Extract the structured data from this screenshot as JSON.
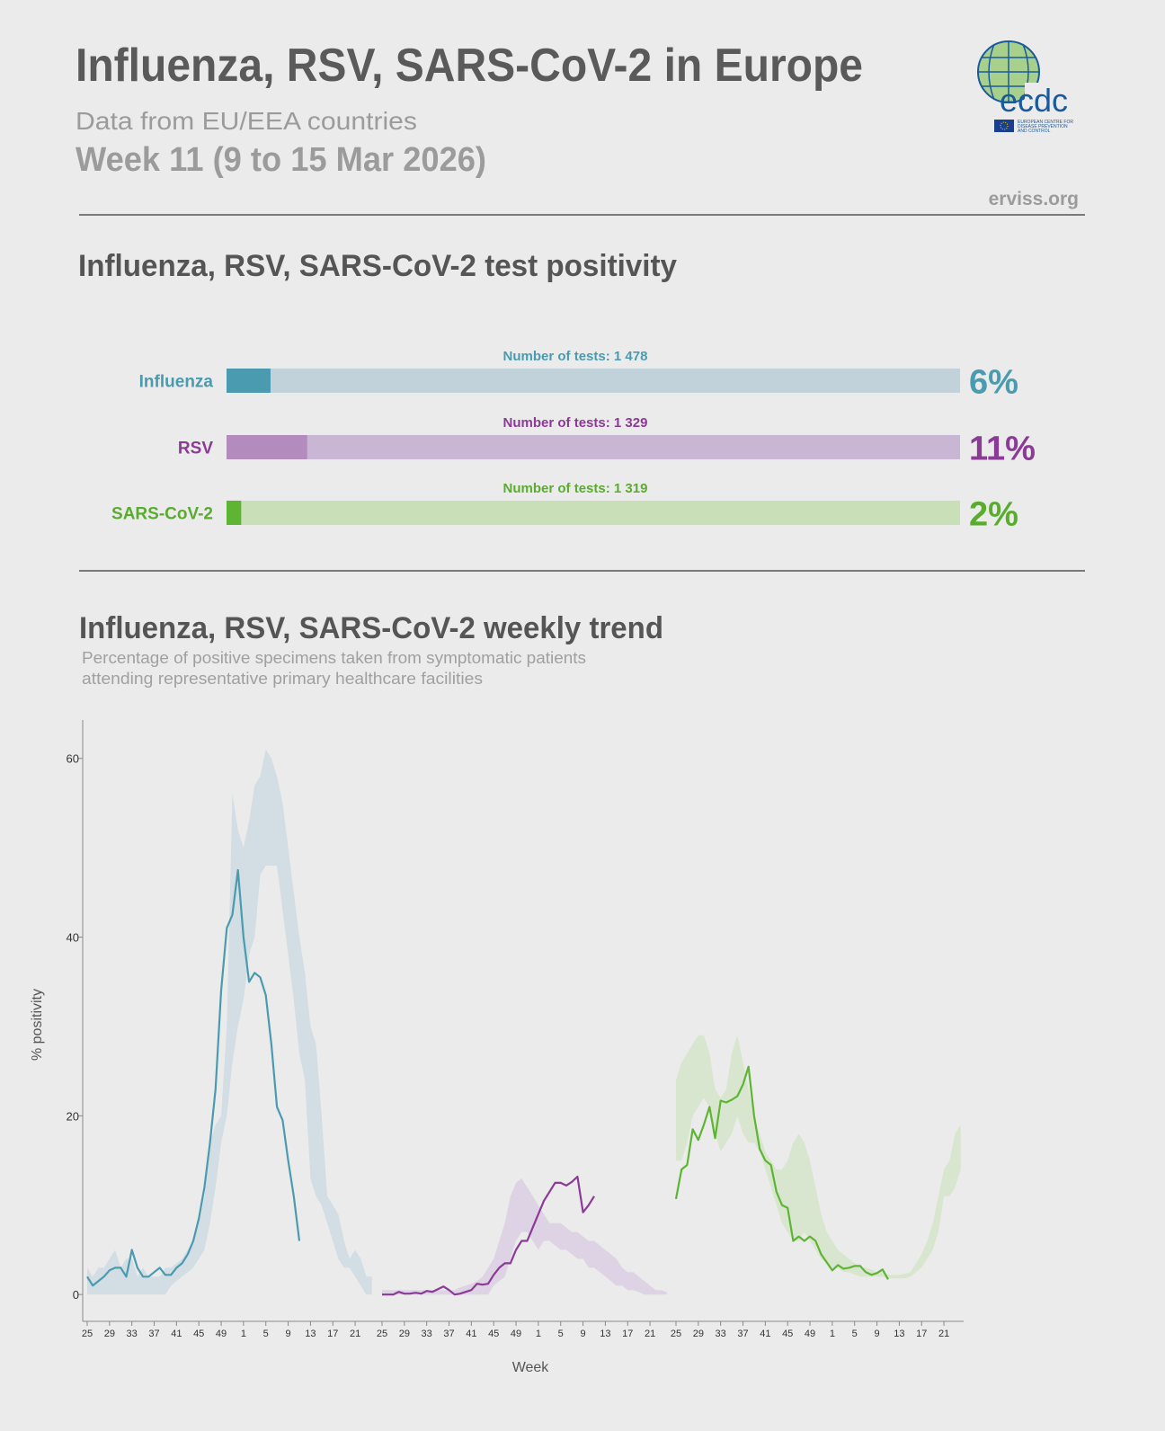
{
  "header": {
    "title": "Influenza, RSV, SARS-CoV-2 in Europe",
    "subtitle": "Data from EU/EEA countries",
    "period": "Week 11 (9 to 15 Mar 2026)",
    "source": "erviss.org",
    "logo_text": "ecdc",
    "logo_subtext": [
      "EUROPEAN CENTRE FOR",
      "DISEASE PREVENTION",
      "AND CONTROL"
    ]
  },
  "chart_data": [
    {
      "type": "bar",
      "title": "Influenza, RSV, SARS-CoV-2 test positivity",
      "categories": [
        "Influenza",
        "RSV",
        "SARS-CoV-2"
      ],
      "values": [
        6,
        11,
        2
      ],
      "value_labels": [
        "6%",
        "11%",
        "2%"
      ],
      "tests_labels": [
        "Number of tests: 1 478",
        "Number of tests: 1 329",
        "Number of tests: 1 319"
      ],
      "colors": [
        "#4a9bb0",
        "#b38cbd",
        "#5db533"
      ],
      "track_colors": [
        "#c2d2db",
        "#c9b5d4",
        "#c9dfb8"
      ],
      "text_colors": [
        "#4a9bb0",
        "#8b3a96",
        "#5aac2e"
      ],
      "xlim": [
        0,
        100
      ]
    },
    {
      "type": "line",
      "title": "Influenza, RSV, SARS-CoV-2 weekly trend",
      "subtitle": [
        "Percentage of positive specimens taken from symptomatic patients",
        "attending representative primary healthcare facilities"
      ],
      "ylabel": "% positivity",
      "xlabel": "Week",
      "ylim": [
        -3,
        64.3
      ],
      "yticks": [
        0,
        20,
        40,
        60
      ],
      "categories": [
        25,
        null,
        null,
        null,
        29,
        null,
        null,
        null,
        33,
        null,
        null,
        null,
        37,
        null,
        null,
        null,
        41,
        null,
        null,
        null,
        45,
        null,
        null,
        null,
        49,
        null,
        null,
        null,
        1,
        null,
        null,
        null,
        5,
        null,
        null,
        null,
        9,
        null,
        null,
        null,
        13,
        null,
        null,
        null,
        17,
        null,
        null,
        null,
        21,
        null,
        null,
        null
      ],
      "series": [
        {
          "color": "#4a9bb0",
          "band_color": "#cfdbe3",
          "values": [
            2,
            1,
            1.5,
            2,
            2.7,
            3,
            3,
            2,
            5,
            3,
            2,
            2,
            2.5,
            3,
            2.2,
            2.2,
            3,
            3.5,
            4.5,
            6,
            8.5,
            12,
            17,
            23,
            34,
            41,
            42.5,
            47.5,
            40,
            35,
            36,
            35.5,
            33.5,
            28,
            21,
            19.5,
            15,
            11,
            6,
            null,
            null,
            null,
            null,
            null,
            null,
            null,
            null,
            null,
            null,
            null,
            null,
            null
          ],
          "band_lower": [
            0,
            0,
            0,
            0,
            0,
            0,
            0,
            0,
            0,
            0,
            0,
            0,
            0,
            0,
            0,
            1,
            1.5,
            2,
            2.5,
            3,
            4,
            5,
            8,
            12,
            17,
            20,
            26,
            30,
            33,
            38,
            40,
            47,
            48,
            48,
            48,
            43,
            38,
            33,
            27,
            24,
            13,
            11,
            10,
            8,
            6,
            4,
            3,
            3,
            2,
            1,
            0,
            0
          ],
          "band_upper": [
            3,
            2,
            3,
            3,
            4,
            5,
            3,
            4,
            4,
            2,
            3,
            2,
            2,
            2,
            3,
            3,
            3.5,
            4,
            5,
            6,
            8,
            11,
            17,
            19,
            20,
            30,
            56,
            52,
            50,
            53,
            57,
            58,
            61,
            60,
            58,
            55,
            50,
            45,
            40,
            36,
            30,
            28,
            20,
            11,
            10,
            9,
            6,
            4,
            5,
            4,
            2,
            2
          ]
        },
        {
          "color": "#8b3a96",
          "band_color": "#ddd0e3",
          "values": [
            0,
            0,
            0,
            0.3,
            0.1,
            0.1,
            0.2,
            0.1,
            0.4,
            0.3,
            0.6,
            0.9,
            0.5,
            0,
            0.1,
            0.3,
            0.5,
            1.2,
            1.1,
            1.2,
            2.2,
            3,
            3.5,
            3.5,
            5,
            6,
            6,
            7.5,
            9,
            10.5,
            11.5,
            12.5,
            12.5,
            12.2,
            12.6,
            13.2,
            9.2,
            10,
            11,
            null,
            null,
            null,
            null,
            null,
            null,
            null,
            null,
            null,
            null,
            null,
            null,
            null
          ],
          "band_lower": [
            0,
            0,
            0,
            0,
            0,
            0,
            0,
            0,
            0,
            0,
            0,
            0,
            0,
            0,
            0,
            0,
            0,
            0,
            0,
            0,
            1,
            1.5,
            2,
            4,
            6,
            7,
            7,
            6,
            5,
            6,
            6,
            5.5,
            5,
            5,
            4.5,
            4,
            4,
            3,
            3,
            2.5,
            2,
            1.5,
            1,
            1,
            0.5,
            0.5,
            0.3,
            0,
            0,
            0,
            0,
            0
          ],
          "band_upper": [
            0.5,
            0.5,
            0.5,
            0.5,
            0.5,
            0.5,
            0.5,
            0.5,
            0.5,
            0.5,
            0.5,
            0.5,
            0.5,
            0.5,
            0.8,
            1,
            1.2,
            1.5,
            2,
            3,
            4,
            6,
            8,
            11,
            12.5,
            13,
            12,
            11,
            10,
            9,
            8,
            8,
            8,
            7.5,
            7,
            7,
            6.5,
            6,
            6,
            5.5,
            5,
            4.5,
            4,
            3,
            2.5,
            2.5,
            2,
            1.5,
            1,
            0.5,
            0.5,
            0.3
          ]
        },
        {
          "color": "#5db533",
          "band_color": "#d6e6cc",
          "values": [
            10.7,
            14,
            14.5,
            18.5,
            17.3,
            19,
            21,
            17.5,
            21.7,
            21.5,
            21.8,
            22.2,
            23.5,
            25.5,
            20,
            16.3,
            15,
            14.5,
            11.5,
            10,
            9.7,
            6,
            6.5,
            6,
            6.5,
            6,
            4.5,
            3.6,
            2.7,
            3.3,
            2.9,
            3,
            3.2,
            3.2,
            2.5,
            2.2,
            2.4,
            2.8,
            1.7,
            null,
            null,
            null,
            null,
            null,
            null,
            null,
            null,
            null,
            null,
            null,
            null,
            null
          ],
          "band_lower": [
            15,
            15,
            17,
            20,
            21,
            22,
            21,
            18,
            16,
            17,
            18,
            20,
            18,
            17,
            17,
            16,
            14,
            12,
            10,
            8,
            7,
            6,
            6,
            7,
            6,
            5,
            4,
            3.5,
            3,
            3,
            2.5,
            2.5,
            2.2,
            2,
            2,
            2,
            2,
            2,
            1.8,
            1.8,
            1.8,
            1.8,
            2,
            2.5,
            3,
            4,
            5,
            7,
            11,
            11,
            12,
            14
          ],
          "band_upper": [
            24,
            26,
            27,
            28,
            29,
            29,
            27,
            23,
            22,
            23,
            27,
            29,
            26,
            23,
            20,
            18,
            16,
            15,
            14,
            14,
            15,
            17,
            18,
            17,
            15,
            12,
            9,
            7,
            6,
            5,
            4.5,
            4,
            3.5,
            3,
            3,
            2.8,
            2.5,
            2.5,
            2.2,
            2.2,
            2.2,
            2.3,
            2.5,
            3.5,
            4.5,
            6,
            8,
            11,
            14,
            15,
            18,
            19
          ]
        }
      ]
    }
  ]
}
